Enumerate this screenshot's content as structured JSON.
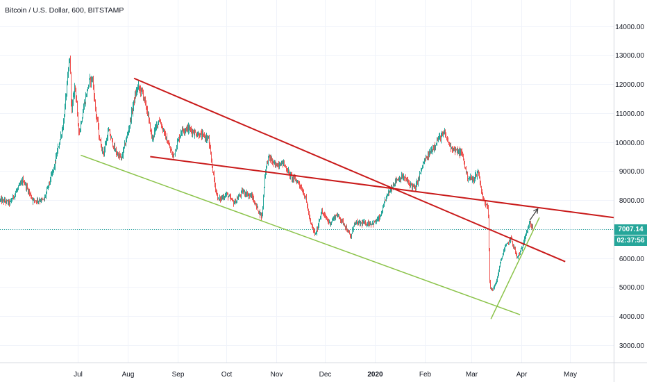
{
  "header": {
    "symbol_line": "Bitcoin / U.S. Dollar, 600, BITSTAMP"
  },
  "colors": {
    "up": "#26a69a",
    "down": "#ef5350",
    "trend_red": "#c91a1a",
    "trend_green": "#8bc34a",
    "arrow": "#444444",
    "grid": "#f0f3fa",
    "price_line": "#26a69a"
  },
  "price_badge": {
    "price": "7007.14",
    "countdown": "02:37:56"
  },
  "chart_data": {
    "type": "candlestick",
    "title": "Bitcoin / U.S. Dollar, 600, BITSTAMP",
    "ylim": [
      2400,
      14900
    ],
    "yticks": [
      3000,
      4000,
      5000,
      6000,
      7000,
      8000,
      9000,
      10000,
      11000,
      12000,
      13000,
      14000
    ],
    "ytick_labels": [
      "3000.00",
      "4000.00",
      "5000.00",
      "6000.00",
      "7000.00",
      "8000.00",
      "9000.00",
      "10000.00",
      "11000.00",
      "12000.00",
      "13000.00",
      "14000.00"
    ],
    "xticks": [
      {
        "label": "Jul",
        "date": "2019-07-01",
        "bold": false
      },
      {
        "label": "Aug",
        "date": "2019-08-01",
        "bold": false
      },
      {
        "label": "Sep",
        "date": "2019-09-01",
        "bold": false
      },
      {
        "label": "Oct",
        "date": "2019-10-01",
        "bold": false
      },
      {
        "label": "Nov",
        "date": "2019-11-01",
        "bold": false
      },
      {
        "label": "Dec",
        "date": "2019-12-01",
        "bold": false
      },
      {
        "label": "2020",
        "date": "2020-01-01",
        "bold": true
      },
      {
        "label": "Feb",
        "date": "2020-02-01",
        "bold": false
      },
      {
        "label": "Mar",
        "date": "2020-03-01",
        "bold": false
      },
      {
        "label": "Apr",
        "date": "2020-04-01",
        "bold": false
      },
      {
        "label": "May",
        "date": "2020-05-01",
        "bold": false
      }
    ],
    "xlim": [
      "2019-05-14",
      "2020-05-28"
    ],
    "last_price": 7007.14,
    "price_path": [
      [
        "2019-05-14",
        8000
      ],
      [
        "2019-05-20",
        7900
      ],
      [
        "2019-05-28",
        8700
      ],
      [
        "2019-06-03",
        8000
      ],
      [
        "2019-06-10",
        8000
      ],
      [
        "2019-06-17",
        9300
      ],
      [
        "2019-06-22",
        10600
      ],
      [
        "2019-06-26",
        13000
      ],
      [
        "2019-06-27",
        11000
      ],
      [
        "2019-06-29",
        12000
      ],
      [
        "2019-07-02",
        10300
      ],
      [
        "2019-07-05",
        11300
      ],
      [
        "2019-07-08",
        12100
      ],
      [
        "2019-07-10",
        12200
      ],
      [
        "2019-07-12",
        11000
      ],
      [
        "2019-07-15",
        10000
      ],
      [
        "2019-07-17",
        9600
      ],
      [
        "2019-07-20",
        10400
      ],
      [
        "2019-07-24",
        9700
      ],
      [
        "2019-07-28",
        9400
      ],
      [
        "2019-08-01",
        10300
      ],
      [
        "2019-08-05",
        11500
      ],
      [
        "2019-08-07",
        11900
      ],
      [
        "2019-08-10",
        11700
      ],
      [
        "2019-08-13",
        11100
      ],
      [
        "2019-08-16",
        10100
      ],
      [
        "2019-08-20",
        10800
      ],
      [
        "2019-08-25",
        10100
      ],
      [
        "2019-08-29",
        9500
      ],
      [
        "2019-09-03",
        10400
      ],
      [
        "2019-09-07",
        10500
      ],
      [
        "2019-09-12",
        10300
      ],
      [
        "2019-09-17",
        10200
      ],
      [
        "2019-09-20",
        10100
      ],
      [
        "2019-09-24",
        8500
      ],
      [
        "2019-09-26",
        8000
      ],
      [
        "2019-10-01",
        8200
      ],
      [
        "2019-10-06",
        7900
      ],
      [
        "2019-10-11",
        8300
      ],
      [
        "2019-10-17",
        8100
      ],
      [
        "2019-10-23",
        7400
      ],
      [
        "2019-10-25",
        9000
      ],
      [
        "2019-10-27",
        9500
      ],
      [
        "2019-10-31",
        9200
      ],
      [
        "2019-11-05",
        9300
      ],
      [
        "2019-11-10",
        8800
      ],
      [
        "2019-11-15",
        8600
      ],
      [
        "2019-11-19",
        8100
      ],
      [
        "2019-11-22",
        7200
      ],
      [
        "2019-11-25",
        6800
      ],
      [
        "2019-11-29",
        7600
      ],
      [
        "2019-12-04",
        7200
      ],
      [
        "2019-12-08",
        7500
      ],
      [
        "2019-12-13",
        7200
      ],
      [
        "2019-12-17",
        6700
      ],
      [
        "2019-12-19",
        7200
      ],
      [
        "2019-12-25",
        7200
      ],
      [
        "2019-12-31",
        7200
      ],
      [
        "2020-01-04",
        7400
      ],
      [
        "2020-01-08",
        8100
      ],
      [
        "2020-01-14",
        8700
      ],
      [
        "2020-01-18",
        8800
      ],
      [
        "2020-01-22",
        8600
      ],
      [
        "2020-01-26",
        8400
      ],
      [
        "2020-01-31",
        9300
      ],
      [
        "2020-02-05",
        9700
      ],
      [
        "2020-02-09",
        10100
      ],
      [
        "2020-02-13",
        10300
      ],
      [
        "2020-02-16",
        9900
      ],
      [
        "2020-02-20",
        9700
      ],
      [
        "2020-02-24",
        9600
      ],
      [
        "2020-02-27",
        8800
      ],
      [
        "2020-03-02",
        8700
      ],
      [
        "2020-03-05",
        9000
      ],
      [
        "2020-03-08",
        8000
      ],
      [
        "2020-03-11",
        7800
      ],
      [
        "2020-03-12",
        5000
      ],
      [
        "2020-03-13",
        4900
      ],
      [
        "2020-03-16",
        5100
      ],
      [
        "2020-03-19",
        5900
      ],
      [
        "2020-03-21",
        6300
      ],
      [
        "2020-03-25",
        6700
      ],
      [
        "2020-03-29",
        6000
      ],
      [
        "2020-04-01",
        6300
      ],
      [
        "2020-04-03",
        6800
      ],
      [
        "2020-04-06",
        7200
      ],
      [
        "2020-04-08",
        7007
      ]
    ],
    "drawings": [
      {
        "kind": "trendline",
        "color": "red",
        "from": [
          "2019-08-05",
          12200
        ],
        "to": [
          "2020-04-28",
          5880
        ]
      },
      {
        "kind": "trendline",
        "color": "red",
        "from": [
          "2019-08-15",
          9500
        ],
        "to": [
          "2020-05-28",
          7400
        ]
      },
      {
        "kind": "trendline",
        "color": "green",
        "from": [
          "2019-07-03",
          9550
        ],
        "to": [
          "2020-03-31",
          4050
        ]
      },
      {
        "kind": "trendline",
        "color": "green",
        "from": [
          "2020-03-13",
          3900
        ],
        "to": [
          "2020-04-12",
          7400
        ]
      },
      {
        "kind": "arrow",
        "color": "dark",
        "from": [
          "2020-04-06",
          7300
        ],
        "to": [
          "2020-04-11",
          7700
        ]
      }
    ]
  }
}
